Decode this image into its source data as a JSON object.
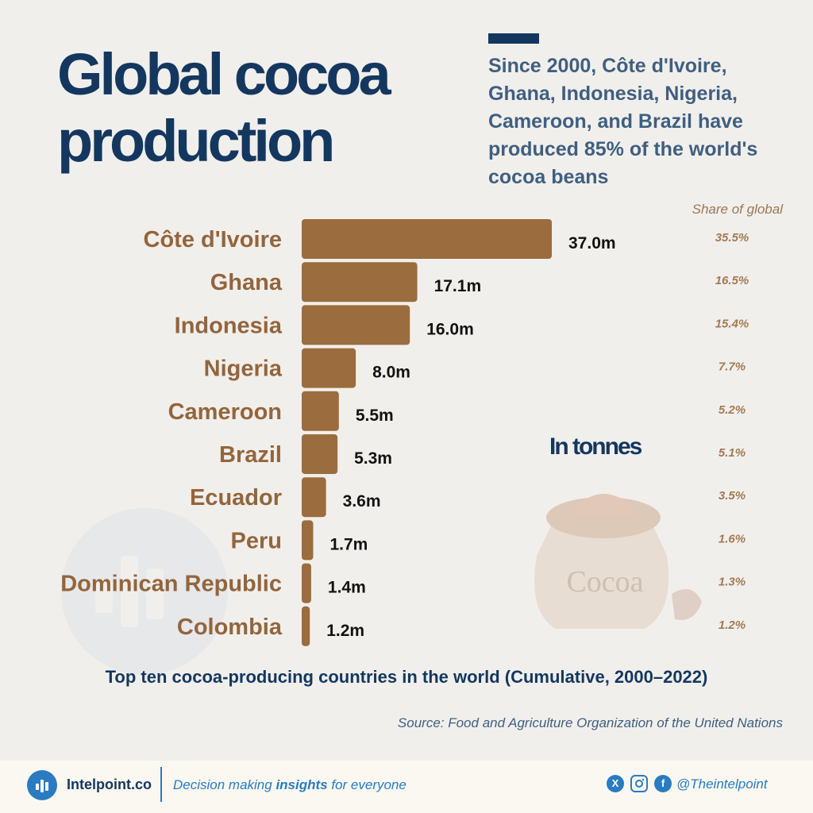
{
  "header": {
    "title": "Global cocoa production",
    "subtitle": "Since 2000, Côte d'Ivoire, Ghana, Indonesia, Nigeria, Cameroon, and Brazil have produced 85% of the world's cocoa beans"
  },
  "chart_data": {
    "type": "bar",
    "orientation": "horizontal",
    "title": "Top ten cocoa-producing countries in the world (Cumulative, 2000–2022)",
    "unit_label": "In tonnes",
    "share_header": "Share of global",
    "categories": [
      "Côte d'Ivoire",
      "Ghana",
      "Indonesia",
      "Nigeria",
      "Cameroon",
      "Brazil",
      "Ecuador",
      "Peru",
      "Dominican Republic",
      "Colombia"
    ],
    "values": [
      37.0,
      17.1,
      16.0,
      8.0,
      5.5,
      5.3,
      3.6,
      1.7,
      1.4,
      1.2
    ],
    "value_labels": [
      "37.0m",
      "17.1m",
      "16.0m",
      "8.0m",
      "5.5m",
      "5.3m",
      "3.6m",
      "1.7m",
      "1.4m",
      "1.2m"
    ],
    "share_labels": [
      "35.5%",
      "16.5%",
      "15.4%",
      "7.7%",
      "5.2%",
      "5.1%",
      "3.5%",
      "1.6%",
      "1.3%",
      "1.2%"
    ],
    "colors": {
      "bar": "#9b6c3e",
      "category_label": "#93653c",
      "share": "#a37a52"
    }
  },
  "illustration": {
    "bag_label": "Cocoa"
  },
  "source": "Source: Food and Agriculture Organization of the United Nations",
  "footer": {
    "brand": "Intelpoint.co",
    "tagline_pre": "Decision making ",
    "tagline_bold": "insights",
    "tagline_post": " for everyone",
    "handle": "@Theintelpoint",
    "social_icons": [
      "x-icon",
      "instagram-icon",
      "facebook-icon"
    ]
  }
}
